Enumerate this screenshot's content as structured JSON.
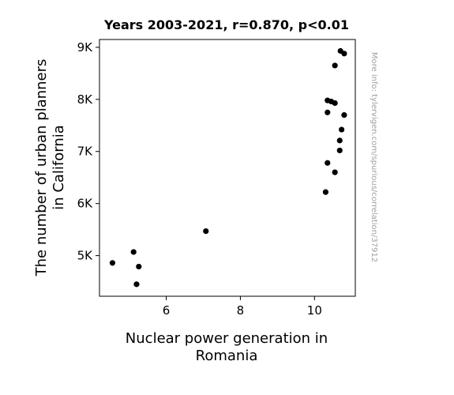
{
  "chart_data": {
    "type": "scatter",
    "title": "Years 2003-2021, r=0.870, p<0.01",
    "xlabel": [
      "Nuclear power generation in",
      "Romania"
    ],
    "ylabel": [
      "The number of urban planners",
      "in California"
    ],
    "xlim": [
      4.2,
      11.1
    ],
    "ylim": [
      4220,
      9150
    ],
    "xticks": [
      {
        "value": 6,
        "label": "6"
      },
      {
        "value": 8,
        "label": "8"
      },
      {
        "value": 10,
        "label": "10"
      }
    ],
    "yticks": [
      {
        "value": 5000,
        "label": "5K"
      },
      {
        "value": 6000,
        "label": "6K"
      },
      {
        "value": 7000,
        "label": "7K"
      },
      {
        "value": 8000,
        "label": "8K"
      },
      {
        "value": 9000,
        "label": "9K"
      }
    ],
    "grid": false,
    "point_color": "#000000",
    "points": [
      {
        "x": 4.55,
        "y": 4860
      },
      {
        "x": 5.12,
        "y": 5070
      },
      {
        "x": 5.26,
        "y": 4790
      },
      {
        "x": 5.2,
        "y": 4450
      },
      {
        "x": 7.07,
        "y": 5470
      },
      {
        "x": 10.3,
        "y": 6220
      },
      {
        "x": 10.35,
        "y": 6780
      },
      {
        "x": 10.55,
        "y": 6600
      },
      {
        "x": 10.68,
        "y": 7020
      },
      {
        "x": 10.68,
        "y": 7210
      },
      {
        "x": 10.73,
        "y": 7420
      },
      {
        "x": 10.8,
        "y": 7700
      },
      {
        "x": 10.35,
        "y": 7750
      },
      {
        "x": 10.35,
        "y": 7980
      },
      {
        "x": 10.45,
        "y": 7960
      },
      {
        "x": 10.55,
        "y": 7930
      },
      {
        "x": 10.55,
        "y": 8650
      },
      {
        "x": 10.7,
        "y": 8930
      },
      {
        "x": 10.8,
        "y": 8880
      }
    ]
  },
  "watermark": "More info: tylervigen.com/spurious/correlation/37912"
}
